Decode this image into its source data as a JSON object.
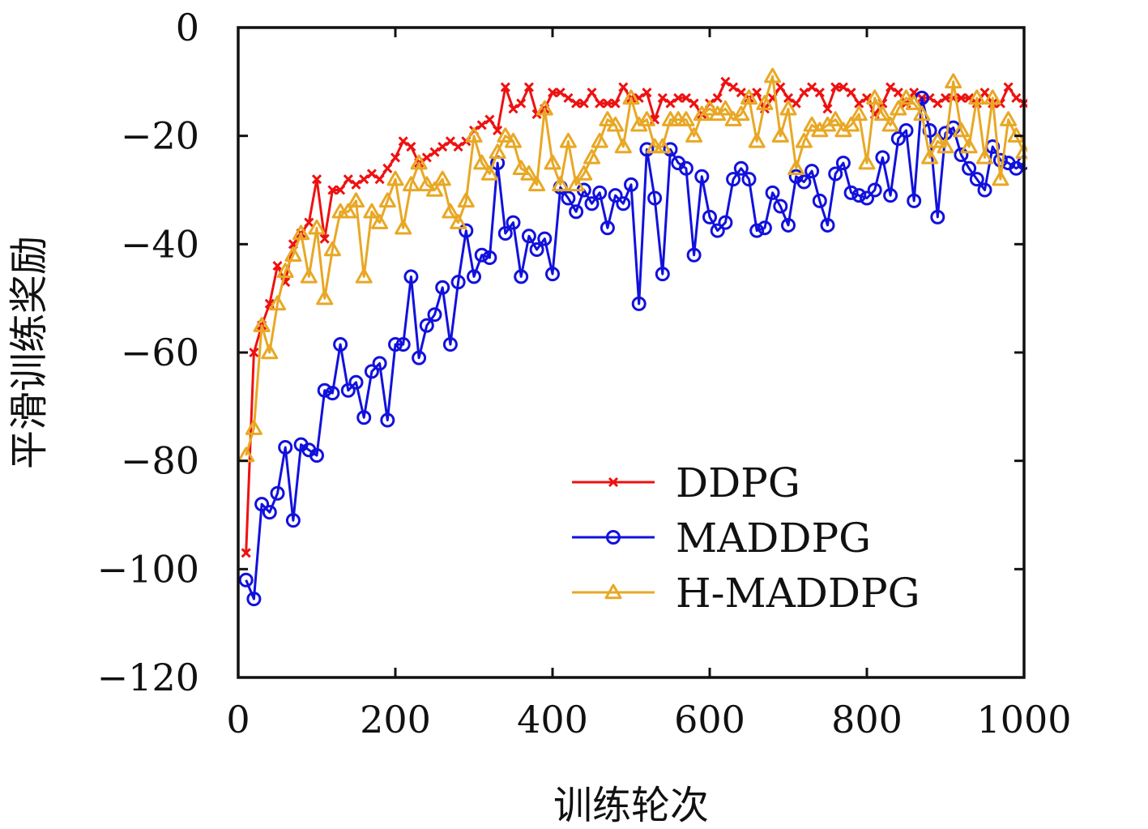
{
  "chart_data": {
    "type": "line",
    "title": "",
    "xlabel": "训练轮次",
    "ylabel": "平滑训练奖励",
    "xlim": [
      0,
      1000
    ],
    "ylim": [
      -120,
      0
    ],
    "xticks": [
      0,
      200,
      400,
      600,
      800,
      1000
    ],
    "xtick_labels": [
      "0",
      "200",
      "400",
      "600",
      "800",
      "1000"
    ],
    "yticks": [
      0,
      -20,
      -40,
      -60,
      -80,
      -100,
      -120
    ],
    "ytick_labels": [
      "0",
      "−20",
      "−40",
      "−60",
      "−80",
      "−100",
      "−120"
    ],
    "grid": false,
    "legend_position": "bottom-right",
    "x": [
      10,
      20,
      30,
      40,
      50,
      60,
      70,
      80,
      90,
      100,
      110,
      120,
      130,
      140,
      150,
      160,
      170,
      180,
      190,
      200,
      210,
      220,
      230,
      240,
      250,
      260,
      270,
      280,
      290,
      300,
      310,
      320,
      330,
      340,
      350,
      360,
      370,
      380,
      390,
      400,
      410,
      420,
      430,
      440,
      450,
      460,
      470,
      480,
      490,
      500,
      510,
      520,
      530,
      540,
      550,
      560,
      570,
      580,
      590,
      600,
      610,
      620,
      630,
      640,
      650,
      660,
      670,
      680,
      690,
      700,
      710,
      720,
      730,
      740,
      750,
      760,
      770,
      780,
      790,
      800,
      810,
      820,
      830,
      840,
      850,
      860,
      870,
      880,
      890,
      900,
      910,
      920,
      930,
      940,
      950,
      960,
      970,
      980,
      990,
      1000
    ],
    "series": [
      {
        "name": "DDPG",
        "color": "#ee1111",
        "marker": "x",
        "values": [
          -97,
          -60,
          -55,
          -51,
          -44,
          -47,
          -40,
          -38,
          -36,
          -28,
          -39,
          -30,
          -30,
          -28,
          -29,
          -28,
          -27,
          -28,
          -26,
          -24,
          -21,
          -22,
          -25,
          -24,
          -23,
          -22,
          -21,
          -22,
          -21,
          -19,
          -18,
          -17,
          -19,
          -11,
          -15,
          -14,
          -11,
          -16,
          -15,
          -12,
          -12,
          -13,
          -14,
          -14,
          -12,
          -14,
          -14,
          -14,
          -11,
          -13,
          -13,
          -12,
          -17,
          -13,
          -14,
          -13,
          -13,
          -14,
          -16,
          -14,
          -13,
          -10,
          -11,
          -12,
          -13,
          -12,
          -15,
          -13,
          -11,
          -13,
          -14,
          -12,
          -11,
          -12,
          -15,
          -11,
          -11,
          -12,
          -14,
          -13,
          -16,
          -14,
          -11,
          -12,
          -14,
          -12,
          -13,
          -13,
          -14,
          -13,
          -13,
          -13,
          -13,
          -14,
          -12,
          -14,
          -14,
          -11,
          -13,
          -14
        ]
      },
      {
        "name": "MADDPG",
        "color": "#1111dd",
        "marker": "o",
        "values": [
          -102,
          -105.5,
          -88,
          -89.5,
          -86,
          -77.5,
          -91,
          -77,
          -78,
          -79,
          -67,
          -67.5,
          -58.5,
          -67,
          -65.5,
          -72,
          -63.5,
          -62,
          -72.5,
          -58.5,
          -58.5,
          -46,
          -61,
          -55,
          -53,
          -48,
          -58.5,
          -47,
          -37.5,
          -46,
          -42,
          -42.5,
          -25,
          -38,
          -36,
          -46,
          -38.5,
          -41,
          -39,
          -45.5,
          -29.5,
          -31.5,
          -34,
          -30,
          -32.5,
          -30.5,
          -37,
          -31,
          -32.5,
          -29,
          -51,
          -22.5,
          -31.5,
          -45.5,
          -22.5,
          -25,
          -26,
          -42,
          -27.5,
          -35,
          -37.5,
          -36,
          -28,
          -26,
          -28,
          -37.5,
          -37,
          -30.5,
          -33,
          -36.5,
          -27.5,
          -28.5,
          -26.5,
          -32,
          -36.5,
          -27,
          -25,
          -30.5,
          -31,
          -31.5,
          -30,
          -24,
          -31,
          -20.5,
          -19,
          -32,
          -13,
          -19,
          -35,
          -19.5,
          -18.5,
          -23.5,
          -26,
          -28,
          -30,
          -22,
          -24.5,
          -25,
          -26,
          -25
        ]
      },
      {
        "name": "H-MADDPG",
        "color": "#e8a825",
        "marker": "^",
        "values": [
          -79,
          -74,
          -55,
          -60,
          -51,
          -45,
          -42,
          -38,
          -46,
          -37,
          -50,
          -41,
          -34,
          -34,
          -32,
          -46,
          -34,
          -36,
          -32,
          -28,
          -37,
          -29,
          -25,
          -29,
          -30,
          -28,
          -34,
          -36,
          -32,
          -20,
          -25,
          -27,
          -23,
          -20,
          -21,
          -26,
          -27,
          -29,
          -15,
          -25,
          -29,
          -21,
          -29,
          -27,
          -24,
          -21,
          -17,
          -18,
          -22,
          -13,
          -18,
          -17,
          -22,
          -22,
          -17,
          -17,
          -17,
          -20,
          -16,
          -15,
          -16,
          -15,
          -17,
          -16,
          -13,
          -21,
          -14,
          -9,
          -20,
          -15,
          -26,
          -21,
          -18,
          -19,
          -18,
          -17,
          -19,
          -18,
          -16,
          -25,
          -13,
          -16,
          -18,
          -15,
          -13,
          -14,
          -16,
          -24,
          -21,
          -22,
          -10,
          -19,
          -22,
          -13,
          -24,
          -13,
          -28,
          -17,
          -20,
          -23
        ]
      }
    ]
  }
}
